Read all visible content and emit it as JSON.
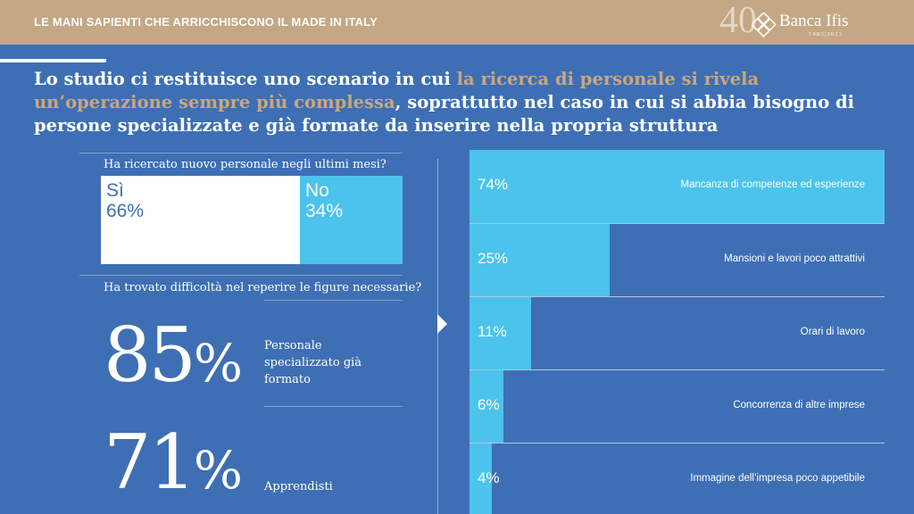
{
  "header": {
    "title": "LE MANI SAPIENTI CHE ARRICCHISCONO IL MADE IN ITALY",
    "logo": {
      "number": "40",
      "brand": "Banca Ifis",
      "years": "1983|2023"
    }
  },
  "headline": {
    "part1": "Lo studio ci restituisce uno scenario in cui ",
    "highlight": "la ricerca di personale si rivela un’operazione sempre più complessa",
    "part2": ", soprattutto nel caso in cui si abbia bisogno di persone specializzate e già formate da inserire nella propria struttura"
  },
  "colors": {
    "background": "#3e6fb4",
    "header": "#c4a784",
    "accent": "#4cc3ec",
    "highlight": "#c9a77e"
  },
  "chart_data": [
    {
      "type": "bar",
      "title": "Ha ricercato nuovo personale negli ultimi mesi?",
      "categories": [
        "Sì",
        "No"
      ],
      "values": [
        66,
        34
      ],
      "labels": [
        "66%",
        "34%"
      ]
    },
    {
      "type": "table",
      "title": "Ha trovato difficoltà nel reperire le figure necessarie?",
      "rows": [
        {
          "value": 85,
          "number": "85",
          "unit": "%",
          "label": "Personale specializzato già formato"
        },
        {
          "value": 71,
          "number": "71",
          "unit": "%",
          "label": "Apprendisti"
        }
      ]
    },
    {
      "type": "bar",
      "categories": [
        "Mancanza di competenze ed esperienze",
        "Mansioni e lavori poco attrattivi",
        "Orari di lavoro",
        "Concorrenza di altre imprese",
        "Immagine dell’impresa poco appetibile"
      ],
      "values": [
        74,
        25,
        11,
        6,
        4
      ],
      "labels": [
        "74%",
        "25%",
        "11%",
        "6%",
        "4%"
      ],
      "xlim": [
        0,
        74
      ]
    }
  ]
}
